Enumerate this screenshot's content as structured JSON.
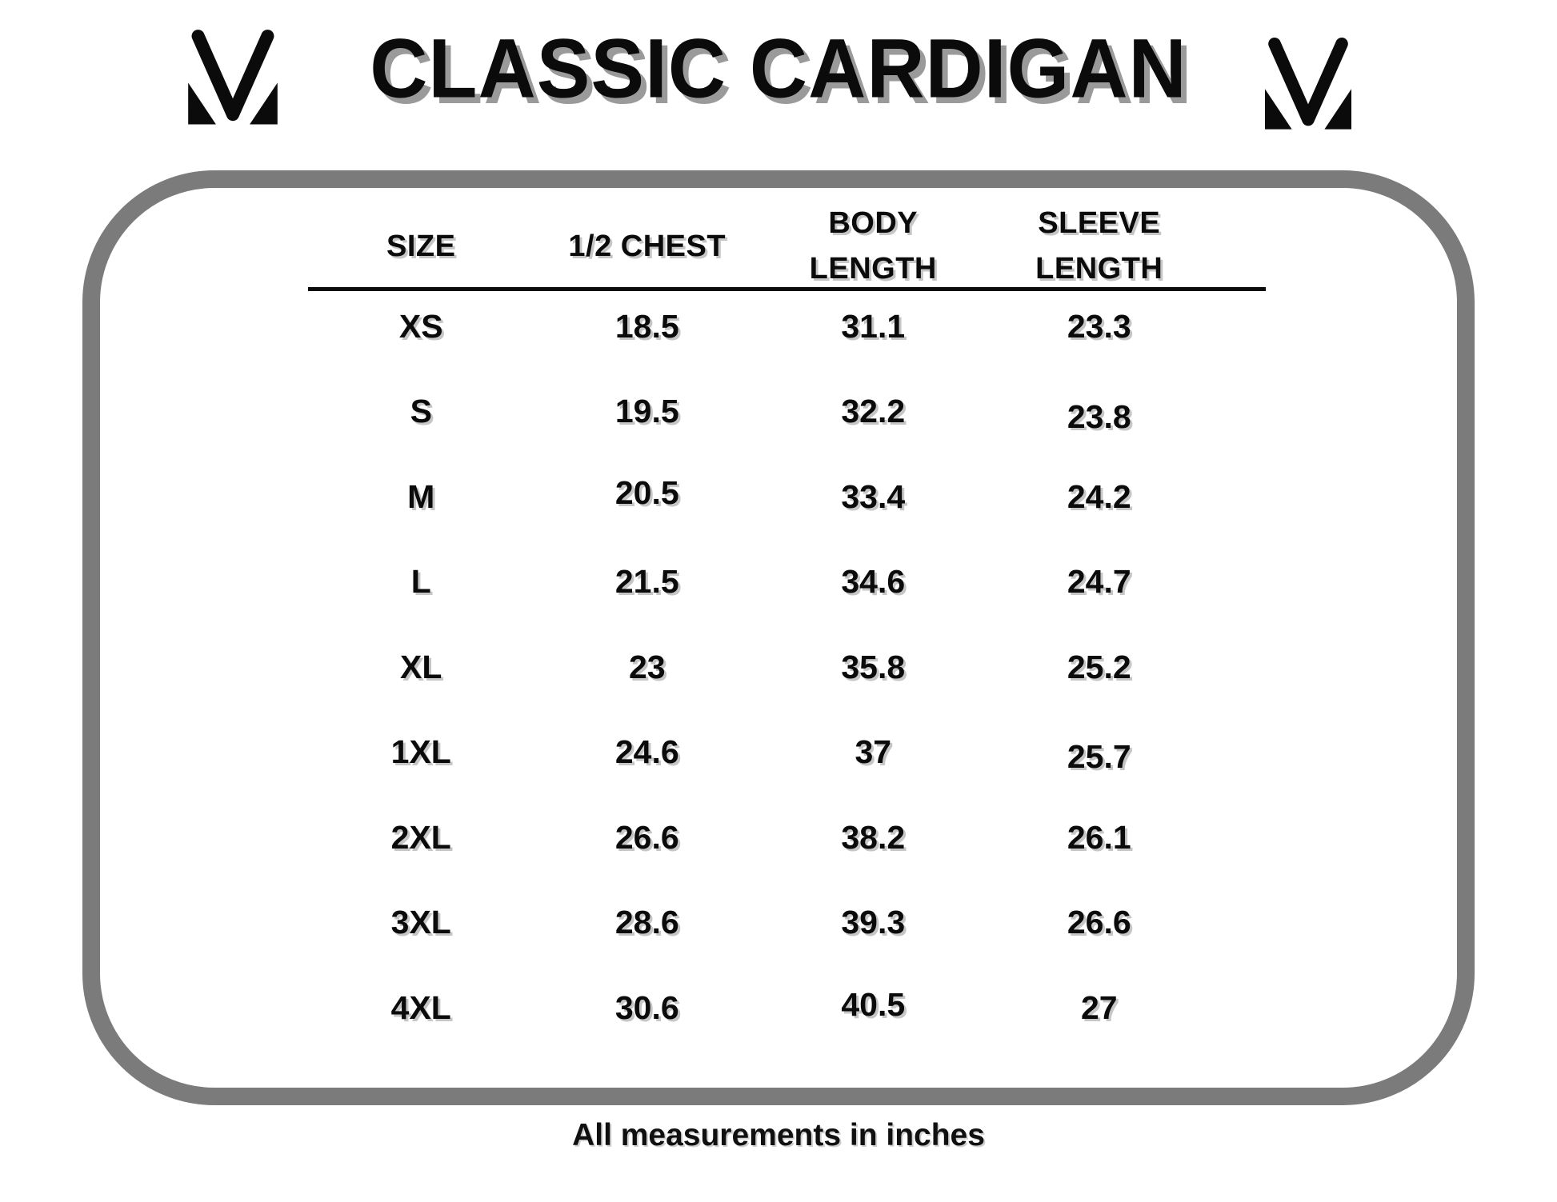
{
  "header": {
    "title": "CLASSIC CARDIGAN"
  },
  "brand": {
    "logo": "mv-monogram"
  },
  "size_chart": {
    "columns": [
      {
        "label": "SIZE",
        "lines": [
          "SIZE"
        ]
      },
      {
        "label": "1/2 CHEST",
        "lines": [
          "1/2 CHEST"
        ]
      },
      {
        "label": "BODY LENGTH",
        "lines": [
          "BODY",
          "LENGTH"
        ]
      },
      {
        "label": "SLEEVE LENGTH",
        "lines": [
          "SLEEVE",
          "LENGTH"
        ]
      }
    ],
    "rows": [
      {
        "size": "XS",
        "half_chest": "18.5",
        "body_length": "31.1",
        "sleeve_length": "23.3"
      },
      {
        "size": "S",
        "half_chest": "19.5",
        "body_length": "32.2",
        "sleeve_length": "23.8"
      },
      {
        "size": "M",
        "half_chest": "20.5",
        "body_length": "33.4",
        "sleeve_length": "24.2"
      },
      {
        "size": "L",
        "half_chest": "21.5",
        "body_length": "34.6",
        "sleeve_length": "24.7"
      },
      {
        "size": "XL",
        "half_chest": "23",
        "body_length": "35.8",
        "sleeve_length": "25.2"
      },
      {
        "size": "1XL",
        "half_chest": "24.6",
        "body_length": "37",
        "sleeve_length": "25.7"
      },
      {
        "size": "2XL",
        "half_chest": "26.6",
        "body_length": "38.2",
        "sleeve_length": "26.1"
      },
      {
        "size": "3XL",
        "half_chest": "28.6",
        "body_length": "39.3",
        "sleeve_length": "26.6"
      },
      {
        "size": "4XL",
        "half_chest": "30.6",
        "body_length": "40.5",
        "sleeve_length": "27"
      }
    ]
  },
  "footer": {
    "note": "All measurements in inches"
  },
  "colors": {
    "background": "#ffffff",
    "text": "#0b0b0b",
    "frame_gray": "#7b7b7b",
    "title_shadow_gray": "#9a9a9a",
    "table_shadow_gray": "#c6c6c6"
  }
}
